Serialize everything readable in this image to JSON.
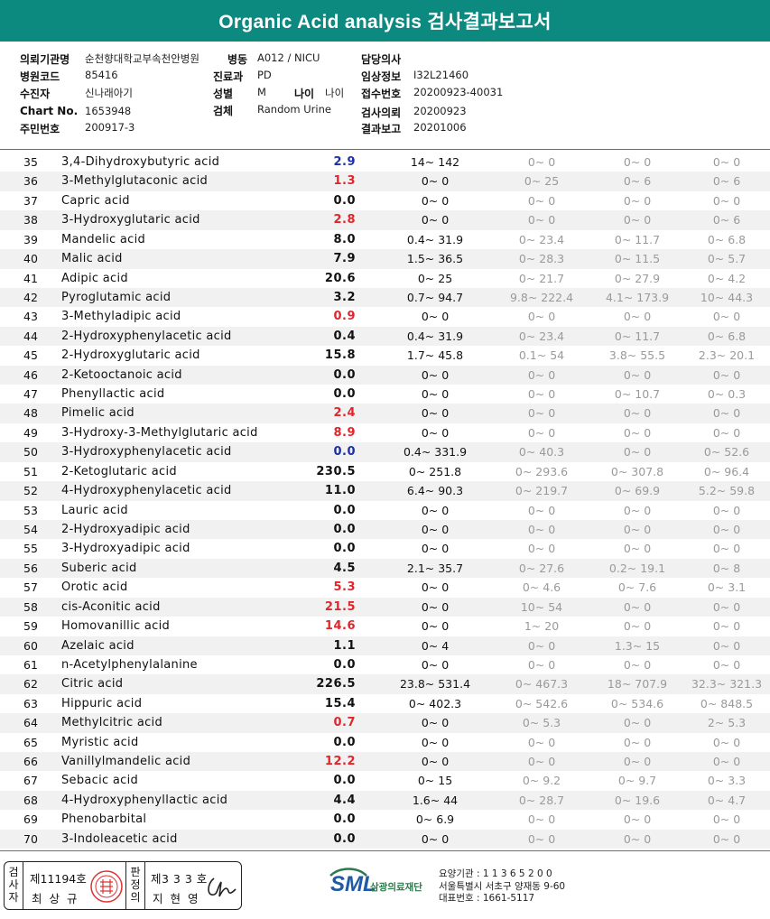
{
  "title": "Organic Acid analysis 검사결과보고서",
  "info": {
    "institution_label": "의뢰기관명",
    "institution": "순천향대학교부속천안병원",
    "ward_label": "병동",
    "ward": "A012 / NICU",
    "doctor_label": "담당의사",
    "doctor": "",
    "hospital_code_label": "병원코드",
    "hospital_code": "85416",
    "dept_label": "진료과",
    "dept": "PD",
    "clinical_label": "임상정보",
    "clinical": "I32L21460",
    "patient_label": "수진자",
    "patient": "신나래아기",
    "sex_label": "성별",
    "sex": "M",
    "age_label": "나이",
    "age": "나이",
    "receipt_label": "접수번호",
    "receipt": "20200923-40031",
    "chart_label": "Chart No.",
    "chart": "1653948",
    "specimen_label": "검체",
    "specimen": "Random Urine",
    "request_label": "검사의뢰",
    "request": "20200923",
    "idno_label": "주민번호",
    "idno": "200917-3",
    "report_label": "결과보고",
    "report": "20201006"
  },
  "rows": [
    {
      "no": "35",
      "name": "3,4-Dihydroxybutyric acid",
      "result": "2.9",
      "flag": "low",
      "ref": "14~ 142",
      "r1": "0~ 0",
      "r2": "0~ 0",
      "r3": "0~ 0"
    },
    {
      "no": "36",
      "name": "3-Methylglutaconic acid",
      "result": "1.3",
      "flag": "high",
      "ref": "0~ 0",
      "r1": "0~ 25",
      "r2": "0~ 6",
      "r3": "0~ 6"
    },
    {
      "no": "37",
      "name": "Capric acid",
      "result": "0.0",
      "flag": "normal",
      "ref": "0~ 0",
      "r1": "0~ 0",
      "r2": "0~ 0",
      "r3": "0~ 0"
    },
    {
      "no": "38",
      "name": "3-Hydroxyglutaric acid",
      "result": "2.8",
      "flag": "high",
      "ref": "0~ 0",
      "r1": "0~ 0",
      "r2": "0~ 0",
      "r3": "0~ 6"
    },
    {
      "no": "39",
      "name": "Mandelic acid",
      "result": "8.0",
      "flag": "normal",
      "ref": "0.4~ 31.9",
      "r1": "0~ 23.4",
      "r2": "0~ 11.7",
      "r3": "0~ 6.8"
    },
    {
      "no": "40",
      "name": "Malic acid",
      "result": "7.9",
      "flag": "normal",
      "ref": "1.5~ 36.5",
      "r1": "0~ 28.3",
      "r2": "0~ 11.5",
      "r3": "0~ 5.7"
    },
    {
      "no": "41",
      "name": "Adipic acid",
      "result": "20.6",
      "flag": "normal",
      "ref": "0~ 25",
      "r1": "0~ 21.7",
      "r2": "0~ 27.9",
      "r3": "0~ 4.2"
    },
    {
      "no": "42",
      "name": "Pyroglutamic acid",
      "result": "3.2",
      "flag": "normal",
      "ref": "0.7~ 94.7",
      "r1": "9.8~ 222.4",
      "r2": "4.1~ 173.9",
      "r3": "10~ 44.3"
    },
    {
      "no": "43",
      "name": "3-Methyladipic acid",
      "result": "0.9",
      "flag": "high",
      "ref": "0~ 0",
      "r1": "0~ 0",
      "r2": "0~ 0",
      "r3": "0~ 0"
    },
    {
      "no": "44",
      "name": "2-Hydroxyphenylacetic acid",
      "result": "0.4",
      "flag": "normal",
      "ref": "0.4~ 31.9",
      "r1": "0~ 23.4",
      "r2": "0~ 11.7",
      "r3": "0~ 6.8"
    },
    {
      "no": "45",
      "name": "2-Hydroxyglutaric acid",
      "result": "15.8",
      "flag": "normal",
      "ref": "1.7~ 45.8",
      "r1": "0.1~ 54",
      "r2": "3.8~ 55.5",
      "r3": "2.3~ 20.1"
    },
    {
      "no": "46",
      "name": "2-Ketooctanoic acid",
      "result": "0.0",
      "flag": "normal",
      "ref": "0~ 0",
      "r1": "0~ 0",
      "r2": "0~ 0",
      "r3": "0~ 0"
    },
    {
      "no": "47",
      "name": "Phenyllactic acid",
      "result": "0.0",
      "flag": "normal",
      "ref": "0~ 0",
      "r1": "0~ 0",
      "r2": "0~ 10.7",
      "r3": "0~ 0.3"
    },
    {
      "no": "48",
      "name": "Pimelic acid",
      "result": "2.4",
      "flag": "high",
      "ref": "0~ 0",
      "r1": "0~ 0",
      "r2": "0~ 0",
      "r3": "0~ 0"
    },
    {
      "no": "49",
      "name": "3-Hydroxy-3-Methylglutaric acid",
      "result": "8.9",
      "flag": "high",
      "ref": "0~ 0",
      "r1": "0~ 0",
      "r2": "0~ 0",
      "r3": "0~ 0"
    },
    {
      "no": "50",
      "name": "3-Hydroxyphenylacetic acid",
      "result": "0.0",
      "flag": "low",
      "ref": "0.4~ 331.9",
      "r1": "0~ 40.3",
      "r2": "0~ 0",
      "r3": "0~ 52.6"
    },
    {
      "no": "51",
      "name": "2-Ketoglutaric acid",
      "result": "230.5",
      "flag": "normal",
      "ref": "0~ 251.8",
      "r1": "0~ 293.6",
      "r2": "0~ 307.8",
      "r3": "0~ 96.4"
    },
    {
      "no": "52",
      "name": "4-Hydroxyphenylacetic acid",
      "result": "11.0",
      "flag": "normal",
      "ref": "6.4~ 90.3",
      "r1": "0~ 219.7",
      "r2": "0~ 69.9",
      "r3": "5.2~ 59.8"
    },
    {
      "no": "53",
      "name": "Lauric acid",
      "result": "0.0",
      "flag": "normal",
      "ref": "0~ 0",
      "r1": "0~ 0",
      "r2": "0~ 0",
      "r3": "0~ 0"
    },
    {
      "no": "54",
      "name": "2-Hydroxyadipic acid",
      "result": "0.0",
      "flag": "normal",
      "ref": "0~ 0",
      "r1": "0~ 0",
      "r2": "0~ 0",
      "r3": "0~ 0"
    },
    {
      "no": "55",
      "name": "3-Hydroxyadipic acid",
      "result": "0.0",
      "flag": "normal",
      "ref": "0~ 0",
      "r1": "0~ 0",
      "r2": "0~ 0",
      "r3": "0~ 0"
    },
    {
      "no": "56",
      "name": "Suberic acid",
      "result": "4.5",
      "flag": "normal",
      "ref": "2.1~ 35.7",
      "r1": "0~ 27.6",
      "r2": "0.2~ 19.1",
      "r3": "0~ 8"
    },
    {
      "no": "57",
      "name": "Orotic acid",
      "result": "5.3",
      "flag": "high",
      "ref": "0~ 0",
      "r1": "0~ 4.6",
      "r2": "0~ 7.6",
      "r3": "0~ 3.1"
    },
    {
      "no": "58",
      "name": "cis-Aconitic acid",
      "result": "21.5",
      "flag": "high",
      "ref": "0~ 0",
      "r1": "10~ 54",
      "r2": "0~ 0",
      "r3": "0~ 0"
    },
    {
      "no": "59",
      "name": "Homovanillic acid",
      "result": "14.6",
      "flag": "high",
      "ref": "0~ 0",
      "r1": "1~ 20",
      "r2": "0~ 0",
      "r3": "0~ 0"
    },
    {
      "no": "60",
      "name": "Azelaic acid",
      "result": "1.1",
      "flag": "normal",
      "ref": "0~ 4",
      "r1": "0~ 0",
      "r2": "1.3~ 15",
      "r3": "0~ 0"
    },
    {
      "no": "61",
      "name": "n-Acetylphenylalanine",
      "result": "0.0",
      "flag": "normal",
      "ref": "0~ 0",
      "r1": "0~ 0",
      "r2": "0~ 0",
      "r3": "0~ 0"
    },
    {
      "no": "62",
      "name": "Citric acid",
      "result": "226.5",
      "flag": "normal",
      "ref": "23.8~ 531.4",
      "r1": "0~ 467.3",
      "r2": "18~ 707.9",
      "r3": "32.3~ 321.3"
    },
    {
      "no": "63",
      "name": "Hippuric acid",
      "result": "15.4",
      "flag": "normal",
      "ref": "0~ 402.3",
      "r1": "0~ 542.6",
      "r2": "0~ 534.6",
      "r3": "0~ 848.5"
    },
    {
      "no": "64",
      "name": "Methylcitric acid",
      "result": "0.7",
      "flag": "high",
      "ref": "0~ 0",
      "r1": "0~ 5.3",
      "r2": "0~ 0",
      "r3": "2~ 5.3"
    },
    {
      "no": "65",
      "name": "Myristic acid",
      "result": "0.0",
      "flag": "normal",
      "ref": "0~ 0",
      "r1": "0~ 0",
      "r2": "0~ 0",
      "r3": "0~ 0"
    },
    {
      "no": "66",
      "name": "Vanillylmandelic acid",
      "result": "12.2",
      "flag": "high",
      "ref": "0~ 0",
      "r1": "0~ 0",
      "r2": "0~ 0",
      "r3": "0~ 0"
    },
    {
      "no": "67",
      "name": "Sebacic acid",
      "result": "0.0",
      "flag": "normal",
      "ref": "0~ 15",
      "r1": "0~ 9.2",
      "r2": "0~ 9.7",
      "r3": "0~ 3.3"
    },
    {
      "no": "68",
      "name": "4-Hydroxyphenyllactic acid",
      "result": "4.4",
      "flag": "normal",
      "ref": "1.6~ 44",
      "r1": "0~ 28.7",
      "r2": "0~ 19.6",
      "r3": "0~ 4.7"
    },
    {
      "no": "69",
      "name": "Phenobarbital",
      "result": "0.0",
      "flag": "normal",
      "ref": "0~ 6.9",
      "r1": "0~ 0",
      "r2": "0~ 0",
      "r3": "0~ 0"
    },
    {
      "no": "70",
      "name": "3-Indoleacetic acid",
      "result": "0.0",
      "flag": "normal",
      "ref": "0~ 0",
      "r1": "0~ 0",
      "r2": "0~ 0",
      "r3": "0~ 0"
    }
  ],
  "colors": {
    "header": "#0c8a80",
    "high": "#e0262b",
    "low": "#1a2fa8",
    "normal": "#111111"
  },
  "footer": {
    "tester_label": "검사자",
    "tester_license": "제11194호",
    "tester_name": "최 상 규",
    "reviewer_label": "판정의",
    "reviewer_license": "제3 3 3 호",
    "reviewer_name": "지 현 영",
    "logo_text": "SML",
    "logo_name": "삼광의료재단",
    "addr_line1": "요양기관 : 1 1 3 6 5 2 0 0",
    "addr_line2": "서울특별시 서초구 양재동 9-60",
    "addr_line3": "대표번호 : 1661-5117"
  }
}
